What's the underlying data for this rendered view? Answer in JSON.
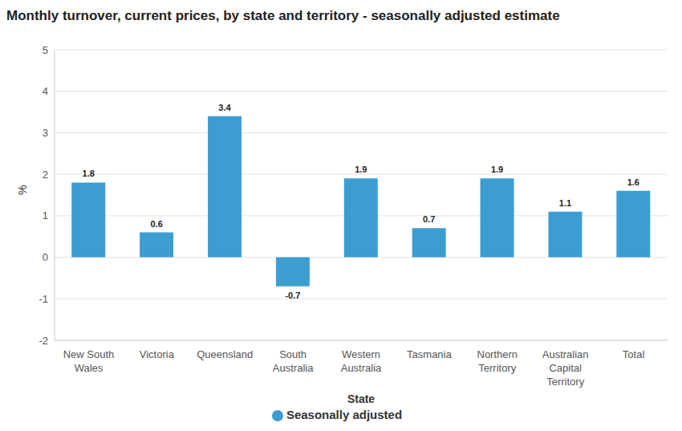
{
  "chart_data": {
    "type": "bar",
    "title": "Monthly turnover, current prices, by state and territory - seasonally adjusted estimate",
    "x_label": "State",
    "y_label": "%",
    "categories": [
      "New South Wales",
      "Victoria",
      "Queensland",
      "South Australia",
      "Western Australia",
      "Tasmania",
      "Northern Territory",
      "Australian Capital Territory",
      "Total"
    ],
    "series": [
      {
        "name": "Seasonally adjusted",
        "color": "#3d9dd1",
        "values": [
          1.8,
          0.6,
          3.4,
          -0.7,
          1.9,
          0.7,
          1.9,
          1.1,
          1.6
        ]
      }
    ],
    "ylim": [
      -2,
      5
    ],
    "yticks": [
      -2,
      -1,
      0,
      1,
      2,
      3,
      4,
      5
    ],
    "grid": true,
    "legend": "bottom",
    "data_labels": true
  }
}
